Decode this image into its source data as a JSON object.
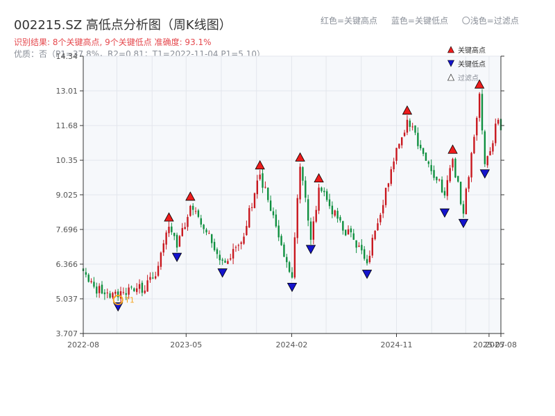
{
  "title": "002215.SZ 高低点分析图（周K线图）",
  "subtitle_result": "识别结果: 8个关键高点, 9个关键低点  准确度: 93.1%",
  "subtitle_quality": "优质：否（P1=37.8%，R2=0.81；T1=2022-11-04 P1=5.10）",
  "top_legend": {
    "red": "红色=关键高点",
    "blue": "蓝色=关键低点",
    "light": "〇浅色=过滤点"
  },
  "legend": [
    "关键高点",
    "关键低点",
    "过滤点"
  ],
  "colors": {
    "up": "#c8161d",
    "down": "#0e8f3f",
    "high_marker": "#ee1c1c",
    "low_marker": "#1414cc",
    "t1_marker": "#f5a623",
    "plot_bg": "#f6f8fb",
    "grid": "#e3e6ec"
  },
  "chart_data": {
    "type": "candlestick",
    "title": "002215.SZ 高低点分析图（周K线图）",
    "x_type": "date",
    "x_range": [
      "2022-08-05",
      "2025-08-01"
    ],
    "ylim": [
      3.707,
      14.34
    ],
    "y_ticks": [
      "3.707",
      "5.037",
      "6.366",
      "7.696",
      "9.025",
      "10.35",
      "11.68",
      "13.01",
      "14.34"
    ],
    "x_ticks": [
      "2022-08",
      "2023-05",
      "2024-02",
      "2024-11",
      "2025-07",
      "2025-08"
    ],
    "anchors": [
      {
        "date": "2022-08-05",
        "price": 6.1
      },
      {
        "date": "2022-09-02",
        "price": 5.5
      },
      {
        "date": "2022-11-04",
        "price": 5.1
      },
      {
        "date": "2022-12-30",
        "price": 5.6
      },
      {
        "date": "2023-01-13",
        "price": 5.35
      },
      {
        "date": "2023-02-17",
        "price": 6.3
      },
      {
        "date": "2023-03-17",
        "price": 7.8
      },
      {
        "date": "2023-04-07",
        "price": 7.0
      },
      {
        "date": "2023-05-12",
        "price": 8.6
      },
      {
        "date": "2023-08-04",
        "price": 6.5
      },
      {
        "date": "2023-09-22",
        "price": 7.2
      },
      {
        "date": "2023-11-10",
        "price": 9.8
      },
      {
        "date": "2024-02-02",
        "price": 5.85
      },
      {
        "date": "2024-02-23",
        "price": 10.1
      },
      {
        "date": "2024-03-22",
        "price": 7.3
      },
      {
        "date": "2024-04-12",
        "price": 9.3
      },
      {
        "date": "2024-08-16",
        "price": 6.4
      },
      {
        "date": "2024-10-25",
        "price": 10.3
      },
      {
        "date": "2024-11-29",
        "price": 11.9
      },
      {
        "date": "2025-03-07",
        "price": 9.0
      },
      {
        "date": "2025-03-28",
        "price": 10.4
      },
      {
        "date": "2025-04-25",
        "price": 8.3
      },
      {
        "date": "2025-06-06",
        "price": 12.9
      },
      {
        "date": "2025-06-20",
        "price": 10.2
      },
      {
        "date": "2025-07-25",
        "price": 11.9
      },
      {
        "date": "2025-08-01",
        "price": 11.5
      }
    ],
    "key_highs": [
      {
        "date": "2023-03-17",
        "price": 7.8
      },
      {
        "date": "2023-05-12",
        "price": 8.6
      },
      {
        "date": "2023-11-10",
        "price": 9.8
      },
      {
        "date": "2024-02-23",
        "price": 10.1
      },
      {
        "date": "2024-04-12",
        "price": 9.3
      },
      {
        "date": "2024-11-29",
        "price": 11.9
      },
      {
        "date": "2025-03-28",
        "price": 10.4
      },
      {
        "date": "2025-06-06",
        "price": 12.9
      }
    ],
    "key_lows": [
      {
        "date": "2022-11-04",
        "price": 5.1
      },
      {
        "date": "2023-04-07",
        "price": 7.0
      },
      {
        "date": "2023-08-04",
        "price": 6.4
      },
      {
        "date": "2024-02-02",
        "price": 5.85
      },
      {
        "date": "2024-03-22",
        "price": 7.3
      },
      {
        "date": "2024-08-16",
        "price": 6.35
      },
      {
        "date": "2025-03-07",
        "price": 8.7
      },
      {
        "date": "2025-04-25",
        "price": 8.3
      },
      {
        "date": "2025-06-20",
        "price": 10.2
      }
    ],
    "t1": {
      "label": "T1",
      "date": "2022-11-04",
      "price": 5.1
    }
  }
}
